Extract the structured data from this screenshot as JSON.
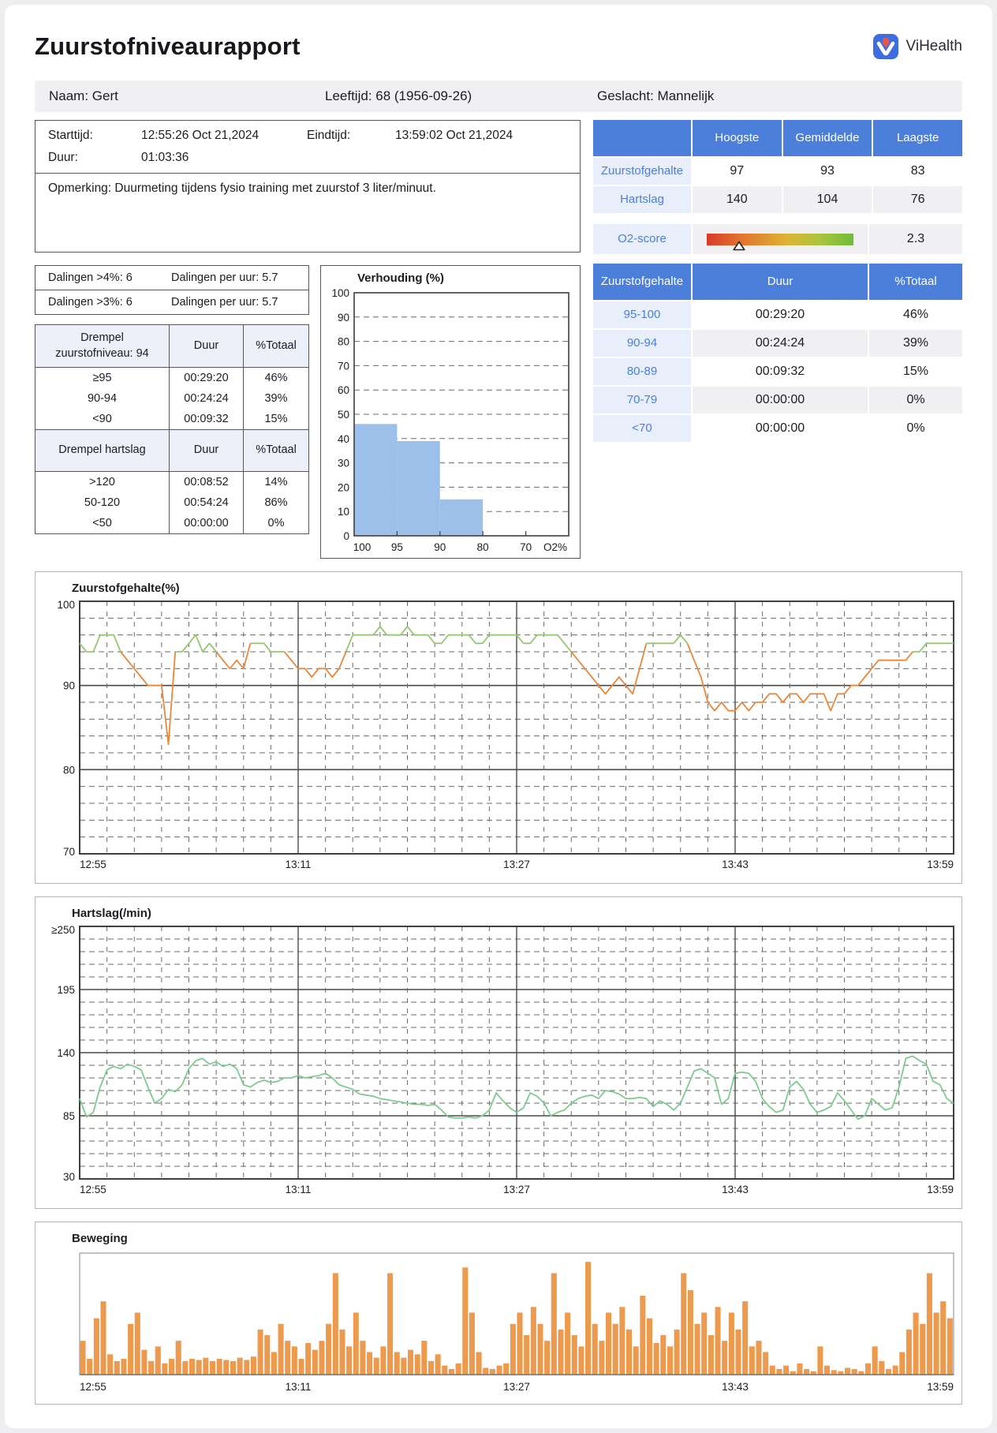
{
  "report": {
    "title": "Zuurstofniveaurapport",
    "brand": "ViHealth",
    "patient": {
      "name": "Naam: Gert",
      "age": "Leeftijd: 68  (1956-09-26)",
      "gender": "Geslacht: Mannelijk"
    },
    "session": {
      "start_label": "Starttijd:",
      "start": "12:55:26 Oct 21,2024",
      "end_label": "Eindtijd:",
      "end": "13:59:02 Oct 21,2024",
      "duration_label": "Duur:",
      "duration": "01:03:36",
      "remark": "Opmerking: Duurmeting tijdens fysio training met zuurstof 3 liter/minuut."
    },
    "dalingen": {
      "row1_left": "Dalingen >4%: 6",
      "row1_right": "Dalingen per uur: 5.7",
      "row2_left": "Dalingen >3%: 6",
      "row2_right": "Dalingen per uur: 5.7"
    },
    "drempel_table": {
      "header1": [
        "Drempel\nzuurstofniveau: 94",
        "Duur",
        "%Totaal"
      ],
      "rows1": [
        [
          "≥95",
          "00:29:20",
          "46%"
        ],
        [
          "90-94",
          "00:24:24",
          "39%"
        ],
        [
          "<90",
          "00:09:32",
          "15%"
        ]
      ],
      "header2": [
        "Drempel hartslag",
        "Duur",
        "%Totaal"
      ],
      "rows2": [
        [
          ">120",
          "00:08:52",
          "14%"
        ],
        [
          "50-120",
          "00:54:24",
          "86%"
        ],
        [
          "<50",
          "00:00:00",
          "0%"
        ]
      ]
    },
    "stats_table": {
      "headers": [
        "",
        "Hoogste",
        "Gemiddelde",
        "Laagste"
      ],
      "rows": [
        [
          "Zuurstofgehalte",
          "97",
          "93",
          "83"
        ],
        [
          "Hartslag",
          "140",
          "104",
          "76"
        ]
      ]
    },
    "o2_score": {
      "label": "O2-score",
      "value": "2.3",
      "marker_pos": 0.22
    },
    "range_table": {
      "headers": [
        "Zuurstofgehalte",
        "Duur",
        "%Totaal"
      ],
      "rows": [
        [
          "95-100",
          "00:29:20",
          "46%"
        ],
        [
          "90-94",
          "00:24:24",
          "39%"
        ],
        [
          "80-89",
          "00:09:32",
          "15%"
        ],
        [
          "70-79",
          "00:00:00",
          "0%"
        ],
        [
          "<70",
          "00:00:00",
          "0%"
        ]
      ]
    }
  },
  "colors": {
    "accent_blue": "#4c7fd9",
    "label_bg": "#e9eefb",
    "alt_row": "#f0f0f2",
    "hist_bar": "#9cc0ea",
    "spo2_green": "#94c871",
    "spo2_orange": "#e8883c",
    "hr_green": "#7ecb8f",
    "move_orange": "#ec9a4d"
  },
  "chart_data": [
    {
      "type": "bar",
      "title": "Verhouding (%)",
      "ylabel": "",
      "xlabel": "O2%",
      "ylim": [
        0,
        100
      ],
      "y_tick_step": 10,
      "x_tick_labels": [
        "100",
        "95",
        "90",
        "80",
        "70",
        "O2%"
      ],
      "note": "x axis compressed, equal spacing between ticks; bars fill bins 100-95, 95-90, 90-80, 80-70",
      "values": [
        46,
        39,
        15,
        0
      ],
      "bar_color": "#9cc0ea",
      "grid": "dashed-horizontal"
    },
    {
      "type": "line",
      "title": "Zuurstofgehalte(%)",
      "ylim": [
        70,
        100
      ],
      "y_tick_labels": [
        "100",
        "90",
        "80",
        "70"
      ],
      "y_tick_values": [
        100,
        90,
        80,
        70
      ],
      "y_minor_step": 2,
      "x_tick_labels": [
        "12:55",
        "13:11",
        "13:27",
        "13:43",
        "13:59"
      ],
      "x_total_min": 64,
      "sample_step_min": 0.5,
      "threshold": 94,
      "color_above": "#94c871",
      "color_below": "#e8883c",
      "values": [
        95,
        94,
        94,
        96,
        96,
        96,
        94,
        93,
        92,
        91,
        90,
        90,
        90,
        83,
        94,
        94,
        95,
        96,
        94,
        95,
        94,
        93,
        92,
        93,
        92,
        95,
        95,
        95,
        94,
        94,
        94,
        93,
        92,
        92,
        91,
        92,
        92,
        91,
        92,
        94,
        96,
        96,
        96,
        96,
        97,
        96,
        96,
        96,
        97,
        96,
        96,
        96,
        95,
        95,
        96,
        96,
        96,
        96,
        95,
        95,
        96,
        96,
        96,
        96,
        96,
        95,
        95,
        96,
        96,
        96,
        96,
        95,
        94,
        93,
        92,
        91,
        90,
        89,
        90,
        91,
        90,
        89,
        92,
        95,
        95,
        95,
        95,
        95,
        96,
        95,
        93,
        91,
        88,
        87,
        88,
        87,
        87,
        88,
        87,
        88,
        88,
        89,
        89,
        88,
        89,
        89,
        88,
        89,
        89,
        89,
        87,
        89,
        89,
        90,
        90,
        91,
        92,
        93,
        93,
        93,
        93,
        93,
        94,
        94,
        95,
        95,
        95,
        95,
        95
      ]
    },
    {
      "type": "line",
      "title": "Hartslag(/min)",
      "ylim": [
        30,
        250
      ],
      "y_tick_labels": [
        "≥250",
        "195",
        "140",
        "85",
        "30"
      ],
      "y_tick_values": [
        250,
        195,
        140,
        85,
        30
      ],
      "y_minor_step": 11,
      "x_tick_labels": [
        "12:55",
        "13:11",
        "13:27",
        "13:43",
        "13:59"
      ],
      "x_total_min": 64,
      "sample_step_min": 0.5,
      "color": "#7ecb8f",
      "values": [
        100,
        84,
        88,
        110,
        125,
        128,
        126,
        130,
        128,
        125,
        110,
        96,
        100,
        108,
        106,
        112,
        126,
        133,
        135,
        130,
        132,
        128,
        130,
        126,
        112,
        110,
        114,
        116,
        114,
        115,
        118,
        118,
        120,
        118,
        119,
        120,
        122,
        118,
        112,
        110,
        108,
        104,
        103,
        102,
        100,
        99,
        98,
        97,
        96,
        95,
        95,
        94,
        95,
        90,
        84,
        83,
        83,
        84,
        83,
        85,
        90,
        105,
        98,
        92,
        88,
        92,
        105,
        102,
        96,
        85,
        88,
        90,
        96,
        100,
        102,
        103,
        100,
        107,
        106,
        104,
        100,
        100,
        101,
        100,
        93,
        98,
        95,
        90,
        96,
        110,
        124,
        126,
        122,
        118,
        95,
        100,
        122,
        123,
        122,
        115,
        100,
        93,
        88,
        90,
        110,
        115,
        108,
        95,
        88,
        90,
        93,
        105,
        98,
        90,
        82,
        85,
        100,
        95,
        90,
        92,
        110,
        135,
        137,
        133,
        130,
        115,
        112,
        100,
        96
      ]
    },
    {
      "type": "bar",
      "title": "Beweging",
      "x_tick_labels": [
        "12:55",
        "13:11",
        "13:27",
        "13:43",
        "13:59"
      ],
      "x_total_min": 64,
      "bar_color": "#ec9a4d",
      "ylim": [
        0,
        105
      ],
      "values": [
        30,
        14,
        50,
        65,
        18,
        12,
        14,
        45,
        55,
        22,
        12,
        25,
        10,
        14,
        30,
        12,
        14,
        13,
        15,
        12,
        14,
        13,
        12,
        15,
        13,
        16,
        40,
        35,
        20,
        45,
        30,
        25,
        14,
        28,
        22,
        30,
        45,
        90,
        40,
        25,
        55,
        30,
        20,
        15,
        25,
        90,
        20,
        15,
        22,
        18,
        30,
        12,
        18,
        8,
        5,
        10,
        95,
        55,
        20,
        6,
        5,
        8,
        10,
        45,
        55,
        35,
        60,
        45,
        30,
        90,
        40,
        55,
        35,
        25,
        100,
        45,
        30,
        55,
        45,
        60,
        40,
        25,
        70,
        50,
        28,
        35,
        25,
        40,
        90,
        75,
        45,
        55,
        35,
        60,
        30,
        55,
        40,
        65,
        25,
        30,
        20,
        8,
        5,
        8,
        3,
        10,
        5,
        3,
        25,
        8,
        4,
        3,
        6,
        5,
        3,
        10,
        25,
        12,
        5,
        8,
        20,
        40,
        55,
        45,
        90,
        55,
        65,
        50
      ]
    }
  ]
}
